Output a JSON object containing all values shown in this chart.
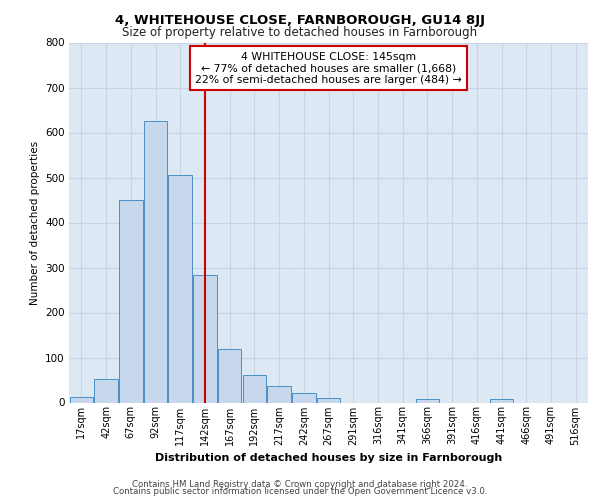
{
  "title1": "4, WHITEHOUSE CLOSE, FARNBOROUGH, GU14 8JJ",
  "title2": "Size of property relative to detached houses in Farnborough",
  "xlabel": "Distribution of detached houses by size in Farnborough",
  "ylabel": "Number of detached properties",
  "footer1": "Contains HM Land Registry data © Crown copyright and database right 2024.",
  "footer2": "Contains public sector information licensed under the Open Government Licence v3.0.",
  "annotation_line1": "4 WHITEHOUSE CLOSE: 145sqm",
  "annotation_line2": "← 77% of detached houses are smaller (1,668)",
  "annotation_line3": "22% of semi-detached houses are larger (484) →",
  "bar_color": "#c8d8ec",
  "bar_edge_color": "#4a90c4",
  "grid_color": "#c8d4e4",
  "bg_color": "#dce8f4",
  "fig_bg_color": "#ffffff",
  "red_line_color": "#cc0000",
  "categories": [
    "17sqm",
    "42sqm",
    "67sqm",
    "92sqm",
    "117sqm",
    "142sqm",
    "167sqm",
    "192sqm",
    "217sqm",
    "242sqm",
    "267sqm",
    "291sqm",
    "316sqm",
    "341sqm",
    "366sqm",
    "391sqm",
    "416sqm",
    "441sqm",
    "466sqm",
    "491sqm",
    "516sqm"
  ],
  "values": [
    13,
    52,
    450,
    625,
    505,
    283,
    118,
    62,
    37,
    22,
    10,
    0,
    0,
    0,
    8,
    0,
    0,
    7,
    0,
    0,
    0
  ],
  "ylim": [
    0,
    800
  ],
  "yticks": [
    0,
    100,
    200,
    300,
    400,
    500,
    600,
    700,
    800
  ]
}
